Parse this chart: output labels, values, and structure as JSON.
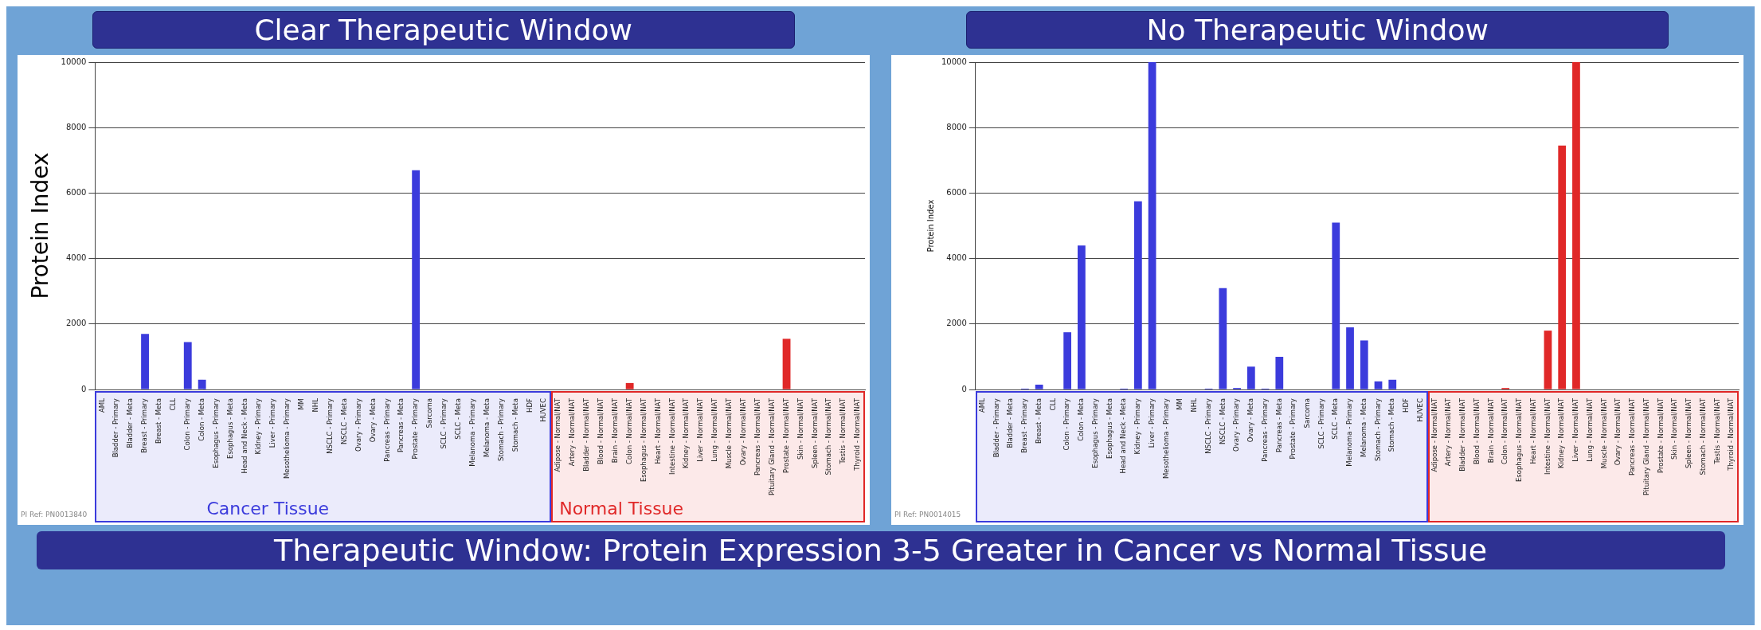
{
  "chart_data": [
    {
      "type": "bar",
      "title": "Clear Therapeutic Window",
      "ylabel": "Protein Index",
      "categories": [
        "AML",
        "Bladder - Primary",
        "Bladder - Meta",
        "Breast - Primary",
        "Breast - Meta",
        "CLL",
        "Colon - Primary",
        "Colon - Meta",
        "Esophagus - Primary",
        "Esophagus - Meta",
        "Head and Neck - Meta",
        "Kidney - Primary",
        "Liver - Primary",
        "Mesothelioma - Primary",
        "MM",
        "NHL",
        "NSCLC - Primary",
        "NSCLC - Meta",
        "Ovary - Primary",
        "Ovary - Meta",
        "Pancreas - Primary",
        "Pancreas - Meta",
        "Prostate - Primary",
        "Sarcoma",
        "SCLC - Primary",
        "SCLC - Meta",
        "Melanoma - Primary",
        "Melanoma - Meta",
        "Stomach - Primary",
        "Stomach - Meta",
        "HDF",
        "HUVEC",
        "Adipose - Normal/NAT",
        "Artery - Normal/NAT",
        "Bladder - Normal/NAT",
        "Blood - Normal/NAT",
        "Brain - Normal/NAT",
        "Colon - Normal/NAT",
        "Esophagus - Normal/NAT",
        "Heart - Normal/NAT",
        "Intestine - Normal/NAT",
        "Kidney - Normal/NAT",
        "Liver - Normal/NAT",
        "Lung - Normal/NAT",
        "Muscle - Normal/NAT",
        "Ovary - Normal/NAT",
        "Pancreas - Normal/NAT",
        "Pituitary Gland - Normal/NAT",
        "Prostate - Normal/NAT",
        "Skin - Normal/NAT",
        "Spleen - Normal/NAT",
        "Stomach - Normal/NAT",
        "Testis - Normal/NAT",
        "Thyroid - Normal/NAT"
      ],
      "values": [
        0,
        0,
        0,
        1700,
        0,
        0,
        1450,
        300,
        0,
        0,
        0,
        0,
        0,
        0,
        0,
        0,
        0,
        0,
        0,
        0,
        0,
        0,
        6700,
        0,
        0,
        0,
        0,
        0,
        0,
        0,
        0,
        0,
        0,
        0,
        0,
        0,
        0,
        200,
        0,
        0,
        0,
        0,
        0,
        0,
        0,
        0,
        0,
        0,
        1550,
        0,
        0,
        0,
        0,
        0
      ],
      "colors": [
        "#3b3bdc",
        "#3b3bdc",
        "#3b3bdc",
        "#3b3bdc",
        "#3b3bdc",
        "#3b3bdc",
        "#3b3bdc",
        "#3b3bdc",
        "#3b3bdc",
        "#3b3bdc",
        "#3b3bdc",
        "#3b3bdc",
        "#3b3bdc",
        "#3b3bdc",
        "#3b3bdc",
        "#3b3bdc",
        "#3b3bdc",
        "#3b3bdc",
        "#3b3bdc",
        "#3b3bdc",
        "#3b3bdc",
        "#3b3bdc",
        "#3b3bdc",
        "#3b3bdc",
        "#3b3bdc",
        "#3b3bdc",
        "#3b3bdc",
        "#3b3bdc",
        "#3b3bdc",
        "#3b3bdc",
        "#3b3bdc",
        "#3b3bdc",
        "#e02828",
        "#e02828",
        "#e02828",
        "#e02828",
        "#e02828",
        "#e02828",
        "#e02828",
        "#e02828",
        "#e02828",
        "#e02828",
        "#e02828",
        "#e02828",
        "#e02828",
        "#e02828",
        "#e02828",
        "#e02828",
        "#e02828",
        "#e02828",
        "#e02828",
        "#e02828",
        "#e02828",
        "#e02828"
      ],
      "ylim": [
        0,
        10000
      ],
      "yticks": [
        0,
        2000,
        4000,
        6000,
        8000,
        10000
      ],
      "grid": "y",
      "legend": false,
      "annotations": [
        "PI Ref: PN0013840",
        "Cancer Tissue",
        "Normal Tissue"
      ]
    },
    {
      "type": "bar",
      "title": "No Therapeutic Window",
      "ylabel": "Protein Index",
      "categories": [
        "AML",
        "Bladder - Primary",
        "Bladder - Meta",
        "Breast - Primary",
        "Breast - Meta",
        "CLL",
        "Colon - Primary",
        "Colon - Meta",
        "Esophagus - Primary",
        "Esophagus - Meta",
        "Head and Neck - Meta",
        "Kidney - Primary",
        "Liver - Primary",
        "Mesothelioma - Primary",
        "MM",
        "NHL",
        "NSCLC - Primary",
        "NSCLC - Meta",
        "Ovary - Primary",
        "Ovary - Meta",
        "Pancreas - Primary",
        "Pancreas - Meta",
        "Prostate - Primary",
        "Sarcoma",
        "SCLC - Primary",
        "SCLC - Meta",
        "Melanoma - Primary",
        "Melanoma - Meta",
        "Stomach - Primary",
        "Stomach - Meta",
        "HDF",
        "HUVEC",
        "Adipose - Normal/NAT",
        "Artery - Normal/NAT",
        "Bladder - Normal/NAT",
        "Blood - Normal/NAT",
        "Brain - Normal/NAT",
        "Colon - Normal/NAT",
        "Esophagus - Normal/NAT",
        "Heart - Normal/NAT",
        "Intestine - Normal/NAT",
        "Kidney - Normal/NAT",
        "Liver - Normal/NAT",
        "Lung - Normal/NAT",
        "Muscle - Normal/NAT",
        "Ovary - Normal/NAT",
        "Pancreas - Normal/NAT",
        "Pituitary Gland - Normal/NAT",
        "Prostate - Normal/NAT",
        "Skin - Normal/NAT",
        "Spleen - Normal/NAT",
        "Stomach - Normal/NAT",
        "Testis - Normal/NAT",
        "Thyroid - Normal/NAT"
      ],
      "values": [
        0,
        0,
        0,
        30,
        150,
        0,
        1750,
        4400,
        0,
        0,
        30,
        5750,
        10000,
        0,
        0,
        0,
        30,
        3100,
        50,
        700,
        30,
        1000,
        0,
        0,
        0,
        5100,
        1900,
        1500,
        250,
        300,
        0,
        0,
        0,
        0,
        0,
        0,
        0,
        50,
        0,
        0,
        1800,
        7450,
        10000,
        0,
        0,
        0,
        0,
        0,
        0,
        0,
        0,
        0,
        0,
        0
      ],
      "colors": [
        "#3b3bdc",
        "#3b3bdc",
        "#3b3bdc",
        "#3b3bdc",
        "#3b3bdc",
        "#3b3bdc",
        "#3b3bdc",
        "#3b3bdc",
        "#3b3bdc",
        "#3b3bdc",
        "#3b3bdc",
        "#3b3bdc",
        "#3b3bdc",
        "#3b3bdc",
        "#3b3bdc",
        "#3b3bdc",
        "#3b3bdc",
        "#3b3bdc",
        "#3b3bdc",
        "#3b3bdc",
        "#3b3bdc",
        "#3b3bdc",
        "#3b3bdc",
        "#3b3bdc",
        "#3b3bdc",
        "#3b3bdc",
        "#3b3bdc",
        "#3b3bdc",
        "#3b3bdc",
        "#3b3bdc",
        "#3b3bdc",
        "#3b3bdc",
        "#e02828",
        "#e02828",
        "#e02828",
        "#e02828",
        "#e02828",
        "#e02828",
        "#e02828",
        "#e02828",
        "#e02828",
        "#e02828",
        "#e02828",
        "#e02828",
        "#e02828",
        "#e02828",
        "#e02828",
        "#e02828",
        "#e02828",
        "#e02828",
        "#e02828",
        "#e02828",
        "#e02828",
        "#e02828"
      ],
      "ylim": [
        0,
        10000
      ],
      "yticks": [
        0,
        2000,
        4000,
        6000,
        8000,
        10000
      ],
      "grid": "y",
      "legend": false,
      "annotations": [
        "PI Ref: PN0014015"
      ]
    },
    {
      "type": "other",
      "title": "Therapeutic Window: Protein Expression 3-5 Greater in Cancer vs Normal Tissue"
    }
  ]
}
